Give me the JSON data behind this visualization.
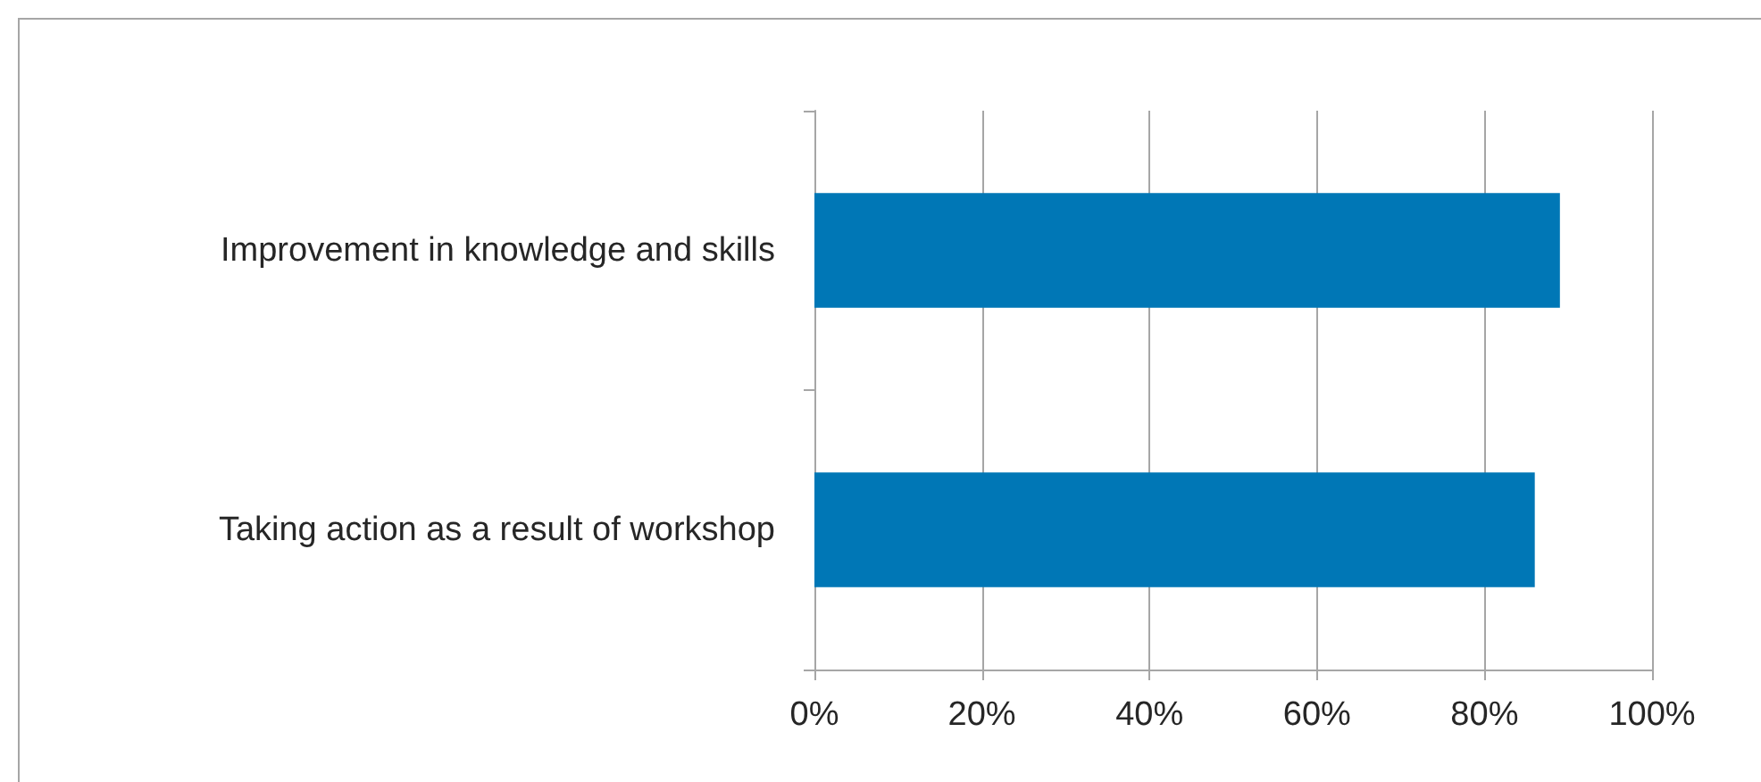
{
  "chart_data": {
    "type": "bar",
    "orientation": "horizontal",
    "categories": [
      "Improvement in knowledge and skills",
      "Taking action as a result of workshop"
    ],
    "values": [
      89,
      86
    ],
    "color": "#0077b6",
    "xlim": [
      0,
      100
    ],
    "xticks": [
      {
        "value": 0,
        "label": "0%"
      },
      {
        "value": 20,
        "label": "20%"
      },
      {
        "value": 40,
        "label": "40%"
      },
      {
        "value": 60,
        "label": "60%"
      },
      {
        "value": 80,
        "label": "80%"
      },
      {
        "value": 100,
        "label": "100%"
      }
    ],
    "grid": "x"
  }
}
